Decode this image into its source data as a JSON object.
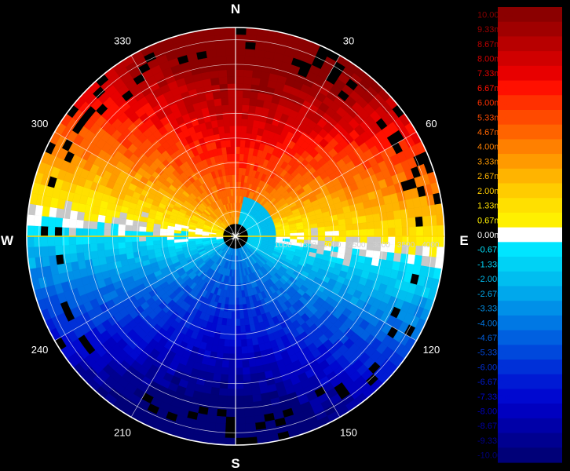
{
  "chart_data": {
    "type": "heatmap",
    "title": "",
    "compass": {
      "north": "N",
      "east": "E",
      "south": "S",
      "west": "W"
    },
    "azimuth_labels": [
      "30",
      "60",
      "120",
      "150",
      "210",
      "240",
      "300",
      "330"
    ],
    "azimuth_values": [
      30,
      60,
      120,
      150,
      210,
      240,
      300,
      330
    ],
    "range_labels": [
      "1000",
      "1500",
      "2000",
      "2500",
      "3000",
      "3500",
      "4000"
    ],
    "range_values": [
      1000,
      1500,
      2000,
      2500,
      3000,
      3500,
      4000
    ],
    "range_max": 4250,
    "velocity_unit": "m/s",
    "legend_entries": [
      {
        "label": "10.00m/s",
        "color": "#8b0000"
      },
      {
        "label": "9.33m/s",
        "color": "#a00000"
      },
      {
        "label": "8.67m/s",
        "color": "#b80000"
      },
      {
        "label": "8.00m/s",
        "color": "#d00000"
      },
      {
        "label": "7.33m/s",
        "color": "#e80000"
      },
      {
        "label": "6.67m/s",
        "color": "#ff1000"
      },
      {
        "label": "6.00m/s",
        "color": "#ff3000"
      },
      {
        "label": "5.33m/s",
        "color": "#ff4a00"
      },
      {
        "label": "4.67m/s",
        "color": "#ff6400"
      },
      {
        "label": "4.00m/s",
        "color": "#ff8000"
      },
      {
        "label": "3.33m/s",
        "color": "#ff9a00"
      },
      {
        "label": "2.67m/s",
        "color": "#ffb400"
      },
      {
        "label": "2.00m/s",
        "color": "#ffcc00"
      },
      {
        "label": "1.33m/s",
        "color": "#ffe000"
      },
      {
        "label": "0.67m/s",
        "color": "#fff000"
      },
      {
        "label": "0.00m/s",
        "color": "#ffffff"
      },
      {
        "label": "-0.67m/s",
        "color": "#00e5ff"
      },
      {
        "label": "-1.33m/s",
        "color": "#00d2f5"
      },
      {
        "label": "-2.00m/s",
        "color": "#00bef0"
      },
      {
        "label": "-2.67m/s",
        "color": "#00a8ec"
      },
      {
        "label": "-3.33m/s",
        "color": "#0090e8"
      },
      {
        "label": "-4.00m/s",
        "color": "#0078e4"
      },
      {
        "label": "-4.67m/s",
        "color": "#0060e0"
      },
      {
        "label": "-5.33m/s",
        "color": "#0048dc"
      },
      {
        "label": "-6.00m/s",
        "color": "#0030d8"
      },
      {
        "label": "-6.67m/s",
        "color": "#001ad4"
      },
      {
        "label": "-7.33m/s",
        "color": "#0008d0"
      },
      {
        "label": "-8.00m/s",
        "color": "#0000c0"
      },
      {
        "label": "-8.67m/s",
        "color": "#0000a8"
      },
      {
        "label": "-9.33m/s",
        "color": "#000090"
      },
      {
        "label": "-10.00m/s",
        "color": "#000078"
      }
    ],
    "colors": {
      "background": "#000000",
      "grid": "#ffffff",
      "axis_zero": "#ffd700",
      "clutter": "#c8c8c8",
      "no_data": "#000000"
    },
    "velocity_field": {
      "note_free": true,
      "zero_line_bearing_deg": 90,
      "max_positive": 10.0,
      "max_negative": -10.0
    }
  }
}
